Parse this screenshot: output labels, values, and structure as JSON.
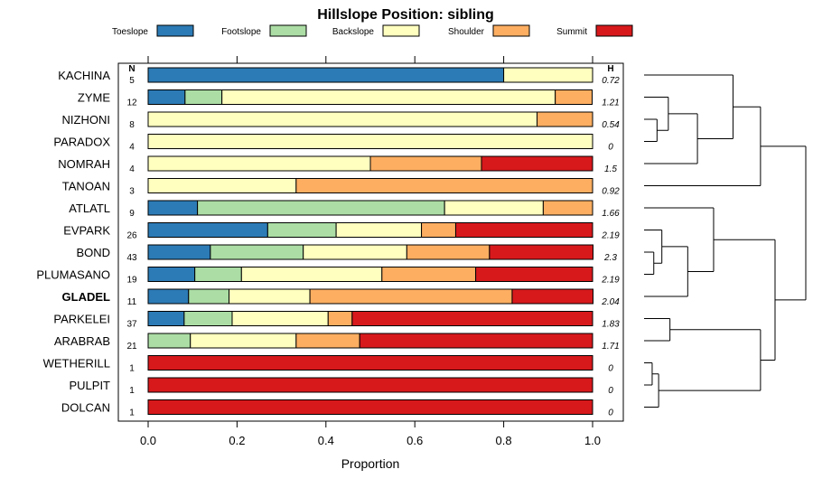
{
  "chart_data": {
    "type": "bar",
    "orientation": "horizontal",
    "stacked": true,
    "title": "Hillslope Position: sibling",
    "xlabel": "Proportion",
    "ylabel": "",
    "xlim": [
      0,
      1
    ],
    "xticks": [
      "0.0",
      "0.2",
      "0.4",
      "0.6",
      "0.8",
      "1.0"
    ],
    "n_header": "N",
    "h_header": "H",
    "legend_position": "top",
    "series": [
      {
        "name": "Toeslope",
        "color": "#2c7bb6"
      },
      {
        "name": "Footslope",
        "color": "#abdda4"
      },
      {
        "name": "Backslope",
        "color": "#ffffbf"
      },
      {
        "name": "Shoulder",
        "color": "#fdae61"
      },
      {
        "name": "Summit",
        "color": "#d7191c"
      }
    ],
    "rows": [
      {
        "label": "KACHINA",
        "n": "5",
        "h": "0.72",
        "bold": false,
        "values": [
          0.8,
          0,
          0.2,
          0,
          0
        ]
      },
      {
        "label": "ZYME",
        "n": "12",
        "h": "1.21",
        "bold": false,
        "values": [
          0.083,
          0.083,
          0.75,
          0.083,
          0
        ]
      },
      {
        "label": "NIZHONI",
        "n": "8",
        "h": "0.54",
        "bold": false,
        "values": [
          0,
          0,
          0.875,
          0.125,
          0
        ]
      },
      {
        "label": "PARADOX",
        "n": "4",
        "h": "0",
        "bold": false,
        "values": [
          0,
          0,
          1,
          0,
          0
        ]
      },
      {
        "label": "NOMRAH",
        "n": "4",
        "h": "1.5",
        "bold": false,
        "values": [
          0,
          0,
          0.5,
          0.25,
          0.25
        ]
      },
      {
        "label": "TANOAN",
        "n": "3",
        "h": "0.92",
        "bold": false,
        "values": [
          0,
          0,
          0.333,
          0.667,
          0
        ]
      },
      {
        "label": "ATLATL",
        "n": "9",
        "h": "1.66",
        "bold": false,
        "values": [
          0.111,
          0.556,
          0.222,
          0.111,
          0
        ]
      },
      {
        "label": "EVPARK",
        "n": "26",
        "h": "2.19",
        "bold": false,
        "values": [
          0.269,
          0.154,
          0.192,
          0.077,
          0.308
        ]
      },
      {
        "label": "BOND",
        "n": "43",
        "h": "2.3",
        "bold": false,
        "values": [
          0.14,
          0.209,
          0.233,
          0.186,
          0.233
        ]
      },
      {
        "label": "PLUMASANO",
        "n": "19",
        "h": "2.19",
        "bold": false,
        "values": [
          0.105,
          0.105,
          0.316,
          0.211,
          0.263
        ]
      },
      {
        "label": "GLADEL",
        "n": "11",
        "h": "2.04",
        "bold": true,
        "values": [
          0.091,
          0.091,
          0.182,
          0.455,
          0.182
        ]
      },
      {
        "label": "PARKELEI",
        "n": "37",
        "h": "1.83",
        "bold": false,
        "values": [
          0.081,
          0.108,
          0.216,
          0.054,
          0.541
        ]
      },
      {
        "label": "ARABRAB",
        "n": "21",
        "h": "1.71",
        "bold": false,
        "values": [
          0,
          0.095,
          0.238,
          0.143,
          0.524
        ]
      },
      {
        "label": "WETHERILL",
        "n": "1",
        "h": "0",
        "bold": false,
        "values": [
          0,
          0,
          0,
          0,
          1
        ]
      },
      {
        "label": "PULPIT",
        "n": "1",
        "h": "0",
        "bold": false,
        "values": [
          0,
          0,
          0,
          0,
          1
        ]
      },
      {
        "label": "DOLCAN",
        "n": "1",
        "h": "0",
        "bold": false,
        "values": [
          0,
          0,
          0,
          0,
          1
        ]
      }
    ],
    "dendrogram": {
      "height_scale": "relative",
      "merges": [
        {
          "a": -3,
          "b": -4,
          "h": 0.08
        },
        {
          "a": -2,
          "b": 1,
          "h": 0.15
        },
        {
          "a": 2,
          "b": -5,
          "h": 0.33
        },
        {
          "a": -1,
          "b": 3,
          "h": 0.55
        },
        {
          "a": 4,
          "b": -6,
          "h": 0.72
        },
        {
          "a": -9,
          "b": -10,
          "h": 0.06
        },
        {
          "a": -8,
          "b": 6,
          "h": 0.11
        },
        {
          "a": 7,
          "b": -11,
          "h": 0.27
        },
        {
          "a": -7,
          "b": 8,
          "h": 0.43
        },
        {
          "a": -12,
          "b": -13,
          "h": 0.16
        },
        {
          "a": -14,
          "b": -15,
          "h": 0.05
        },
        {
          "a": 11,
          "b": -16,
          "h": 0.09
        },
        {
          "a": 10,
          "b": 12,
          "h": 0.72
        },
        {
          "a": 9,
          "b": 13,
          "h": 0.81
        },
        {
          "a": 5,
          "b": 14,
          "h": 1.0
        }
      ]
    }
  }
}
